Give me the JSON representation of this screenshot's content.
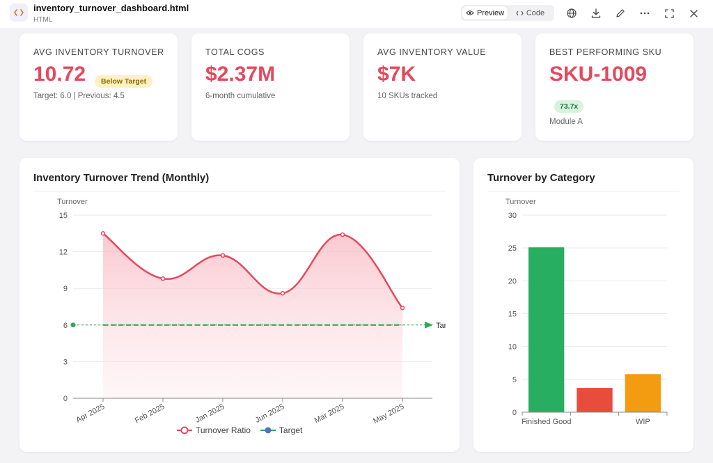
{
  "header": {
    "file_title": "inventory_turnover_dashboard.html",
    "file_type": "HTML",
    "preview_label": "Preview",
    "code_label": "Code",
    "icons": [
      "code-icon",
      "eye-icon",
      "code-brackets-icon",
      "globe-icon",
      "download-icon",
      "pencil-icon",
      "more-icon",
      "fullscreen-icon",
      "close-icon"
    ]
  },
  "kpis": [
    {
      "label": "AVG INVENTORY TURNOVER",
      "value": "10.72",
      "badge": "Below Target",
      "sub": "Target: 6.0 | Previous: 4.5"
    },
    {
      "label": "TOTAL COGS",
      "value": "$2.37M",
      "sub": "6-month cumulative"
    },
    {
      "label": "AVG INVENTORY VALUE",
      "value": "$7K",
      "sub": "10 SKUs tracked"
    },
    {
      "label": "BEST PERFORMING SKU",
      "value": "SKU-1009",
      "badge": "73.7x",
      "sub": "Module A"
    }
  ],
  "colors": {
    "accent": "#e5495d",
    "target": "#2eaa5a",
    "legend_target": "#5470c6"
  },
  "trend": {
    "title": "Inventory Turnover Trend (Monthly)",
    "axis_title": "Turnover",
    "target_label": "Target",
    "legend": [
      "Turnover Ratio",
      "Target"
    ]
  },
  "category": {
    "title": "Turnover by Category",
    "axis_title": "Turnover"
  },
  "chart_data": [
    {
      "type": "line",
      "title": "Inventory Turnover Trend (Monthly)",
      "ylabel": "Turnover",
      "x": [
        "Apr 2025",
        "Feb 2025",
        "Jan 2025",
        "Jun 2025",
        "Mar 2025",
        "May 2025"
      ],
      "ylim": [
        0,
        15
      ],
      "yticks": [
        0,
        3,
        6,
        9,
        12,
        15
      ],
      "series": [
        {
          "name": "Turnover Ratio",
          "values": [
            13.5,
            9.8,
            11.7,
            8.6,
            13.4,
            7.4
          ]
        },
        {
          "name": "Target",
          "values": [
            6,
            6,
            6,
            6,
            6,
            6
          ]
        }
      ],
      "grid": true,
      "legend": "bottom"
    },
    {
      "type": "bar",
      "title": "Turnover by Category",
      "ylabel": "Turnover",
      "categories": [
        "Finished Good",
        "",
        "WIP"
      ],
      "values": [
        25.1,
        3.7,
        5.8
      ],
      "colors": [
        "#27ae60",
        "#e74c3c",
        "#f39c12"
      ],
      "ylim": [
        0,
        30
      ],
      "yticks": [
        0,
        5,
        10,
        15,
        20,
        25,
        30
      ],
      "grid": true
    }
  ]
}
